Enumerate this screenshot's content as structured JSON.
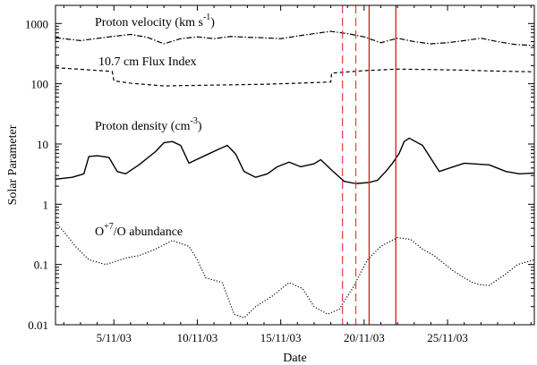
{
  "chart_data": {
    "type": "line",
    "xlabel": "Date",
    "ylabel": "Solar Parameter",
    "yscale": "log",
    "ylim": [
      0.01,
      2000
    ],
    "xlim": [
      1.5,
      30.2
    ],
    "x_unit": "day of November 2003",
    "xticks": [
      {
        "value": 5,
        "label": "5/11/03"
      },
      {
        "value": 10,
        "label": "10/11/03"
      },
      {
        "value": 15,
        "label": "15/11/03"
      },
      {
        "value": 20,
        "label": "20/11/03"
      },
      {
        "value": 25,
        "label": "25/11/03"
      }
    ],
    "yticks": [
      {
        "value": 0.01,
        "label": "0.01"
      },
      {
        "value": 0.1,
        "label": "0.1"
      },
      {
        "value": 1,
        "label": "1"
      },
      {
        "value": 10,
        "label": "10"
      },
      {
        "value": 100,
        "label": "100"
      },
      {
        "value": 1000,
        "label": "1000"
      }
    ],
    "series": [
      {
        "name": "proton-velocity",
        "label_parts": [
          "Proton velocity (km s",
          "-1",
          ")"
        ],
        "style": "dashdot",
        "x": [
          1.5,
          3,
          4.5,
          6,
          7,
          8,
          9,
          10,
          11,
          12,
          13,
          14,
          15,
          16,
          17,
          18,
          19,
          20,
          21,
          22,
          23,
          24,
          25,
          26,
          27,
          28,
          29,
          30.2
        ],
        "values": [
          580,
          520,
          590,
          660,
          590,
          460,
          560,
          600,
          560,
          610,
          590,
          580,
          560,
          620,
          680,
          740,
          680,
          600,
          480,
          570,
          500,
          460,
          480,
          520,
          570,
          500,
          450,
          430
        ]
      },
      {
        "name": "flux-index",
        "label_parts": [
          "10.7 cm Flux Index"
        ],
        "style": "dashed",
        "x": [
          1.5,
          3.5,
          4.9,
          5.0,
          6,
          8,
          10,
          12,
          14,
          16,
          18,
          18.05,
          20,
          22,
          24,
          26,
          28,
          30.2
        ],
        "values": [
          185,
          170,
          160,
          112,
          102,
          92,
          94,
          96,
          98,
          102,
          107,
          150,
          165,
          175,
          172,
          168,
          162,
          158
        ]
      },
      {
        "name": "proton-density",
        "label_parts": [
          "Proton density (cm",
          "-3",
          ")"
        ],
        "style": "solid",
        "x": [
          1.5,
          2.5,
          3.2,
          3.5,
          4,
          4.7,
          5.2,
          5.7,
          6.5,
          7.5,
          8.0,
          8.5,
          9,
          9.5,
          10.5,
          11.2,
          11.8,
          12.3,
          12.8,
          13.5,
          14.2,
          14.8,
          15.5,
          16.2,
          17,
          17.4,
          18,
          18.8,
          19.5,
          20.3,
          20.8,
          21.3,
          21.7,
          22.1,
          22.4,
          22.7,
          23.5,
          24.5,
          26,
          27.5,
          28.5,
          29.3,
          30.2
        ],
        "values": [
          2.6,
          2.8,
          3.2,
          6.2,
          6.4,
          6.0,
          3.5,
          3.2,
          4.5,
          7.5,
          10.5,
          11,
          9.5,
          4.8,
          6.5,
          8.0,
          9.5,
          6.8,
          3.5,
          2.8,
          3.2,
          4.2,
          5.0,
          4.2,
          4.7,
          5.5,
          3.8,
          2.4,
          2.2,
          2.3,
          2.5,
          3.5,
          4.8,
          7.0,
          11,
          12.5,
          9.5,
          3.5,
          4.8,
          4.5,
          3.5,
          3.2,
          3.3
        ]
      },
      {
        "name": "oxygen-abundance",
        "label_parts": [
          "O",
          "+7",
          "/O abundance"
        ],
        "style": "dotted",
        "x": [
          1.5,
          2,
          2.7,
          3.5,
          4.5,
          5,
          5.8,
          6.5,
          7.5,
          8.5,
          9.5,
          10,
          10.5,
          11,
          11.5,
          12.2,
          12.8,
          13.5,
          14.5,
          15.5,
          16.3,
          17,
          17.8,
          18.5,
          19.3,
          20.2,
          21,
          22,
          22.8,
          23.5,
          24.2,
          25.3,
          26,
          26.5,
          27,
          27.5,
          28.5,
          29.2,
          30.2
        ],
        "values": [
          0.5,
          0.35,
          0.2,
          0.12,
          0.1,
          0.11,
          0.13,
          0.14,
          0.18,
          0.25,
          0.2,
          0.12,
          0.06,
          0.055,
          0.05,
          0.015,
          0.013,
          0.02,
          0.03,
          0.05,
          0.04,
          0.02,
          0.015,
          0.018,
          0.04,
          0.12,
          0.2,
          0.28,
          0.26,
          0.18,
          0.14,
          0.08,
          0.06,
          0.05,
          0.046,
          0.045,
          0.07,
          0.1,
          0.12
        ]
      }
    ],
    "vlines": [
      {
        "name": "vline-dashed-1",
        "x": 18.7,
        "style": "dashed",
        "color": "#e24a3f"
      },
      {
        "name": "vline-dashed-2",
        "x": 19.5,
        "style": "dashed",
        "color": "#e24a3f"
      },
      {
        "name": "vline-solid-1",
        "x": 20.3,
        "style": "solid",
        "color": "#cc1b1b"
      },
      {
        "name": "vline-solid-2",
        "x": 21.9,
        "style": "solid",
        "color": "#cc1b1b"
      }
    ],
    "legend": "inline labels",
    "grid": false
  }
}
